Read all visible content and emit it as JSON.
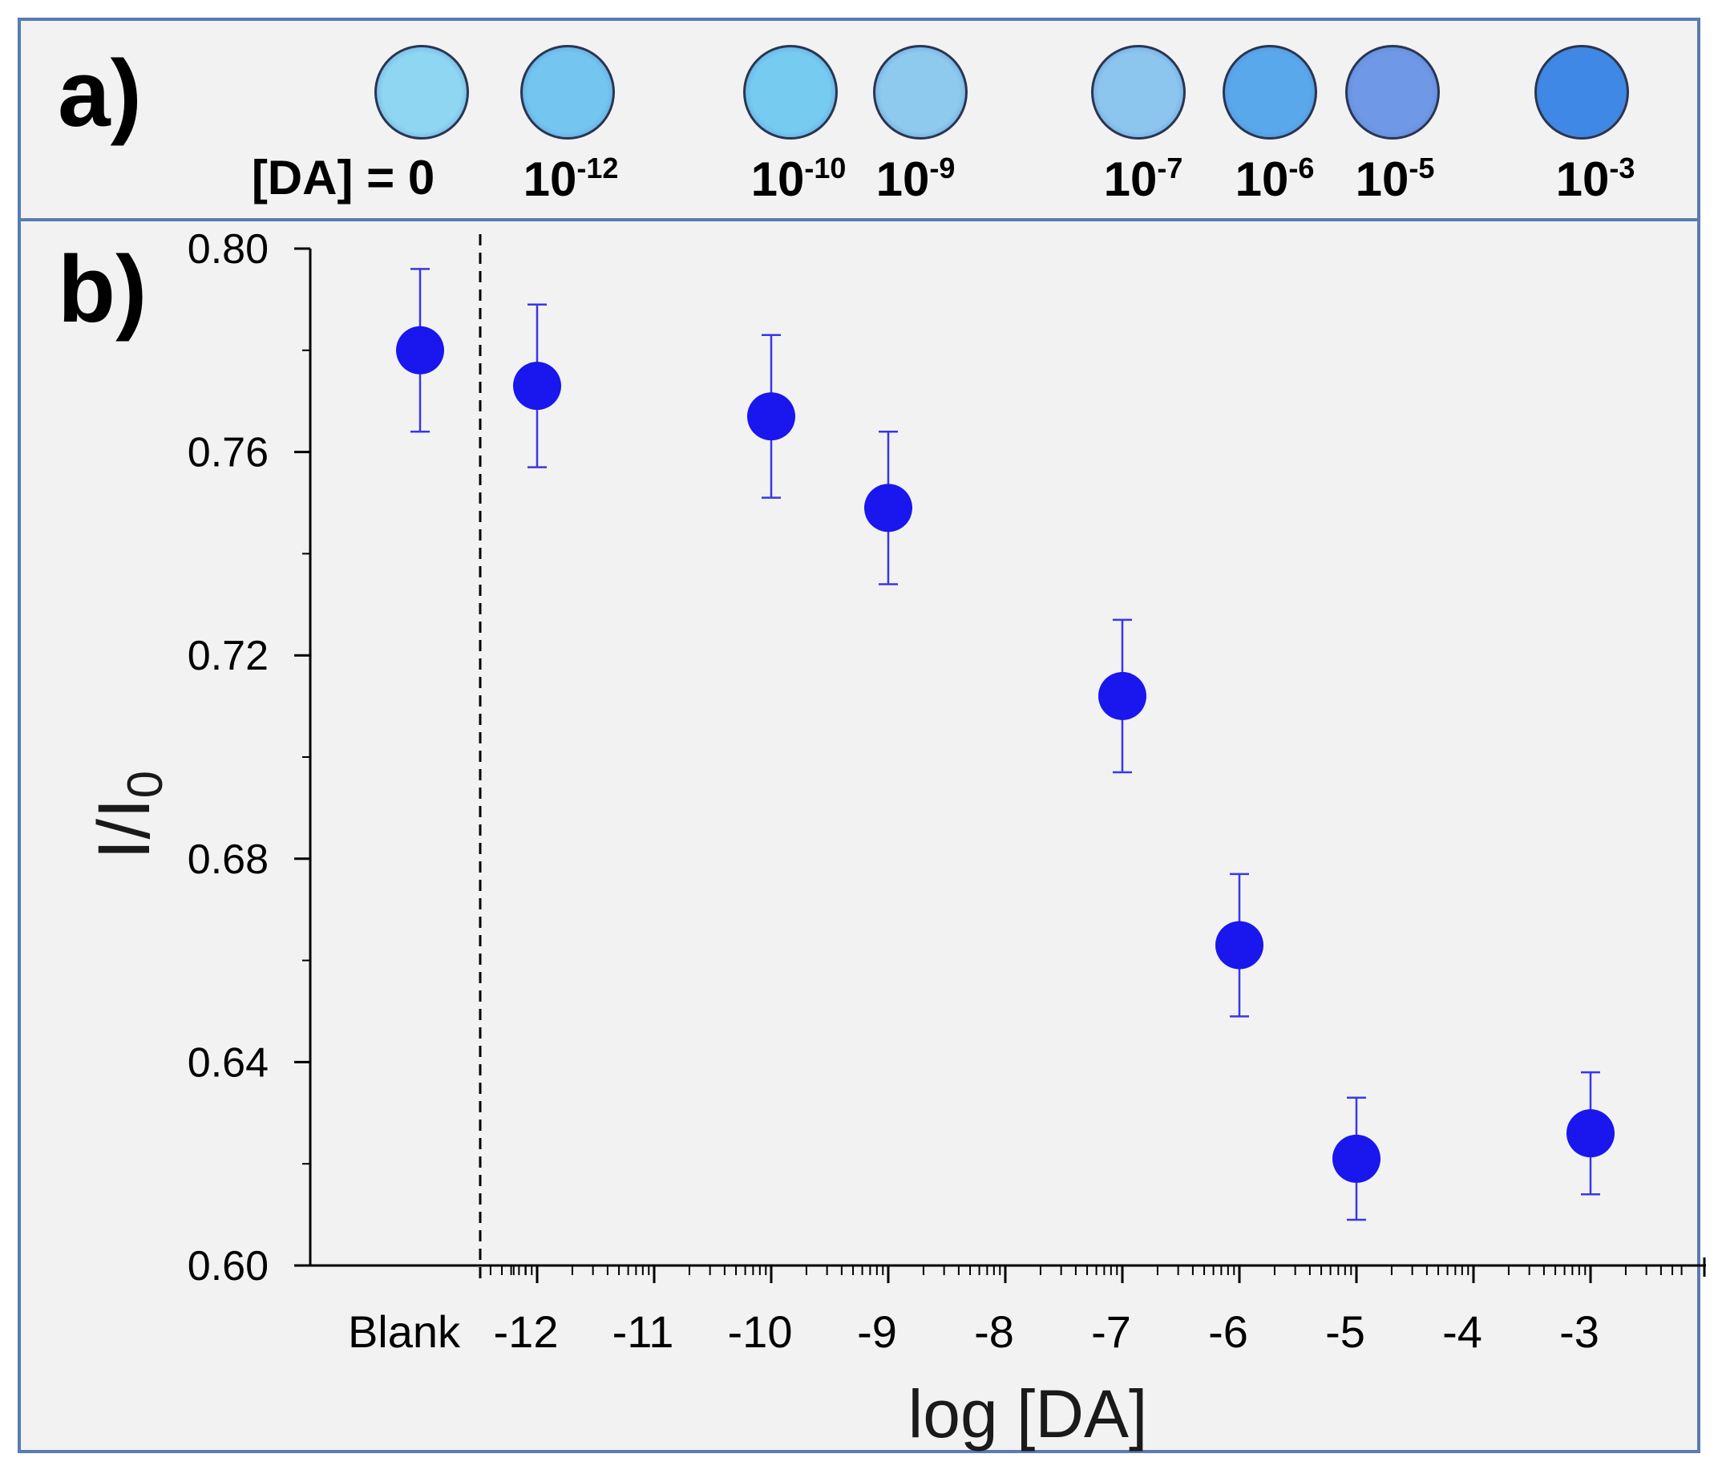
{
  "panel_a": {
    "label": "a)",
    "wells": [
      {
        "label": "[DA] = 0",
        "base": "",
        "exp": "",
        "color": "#8fd6f2"
      },
      {
        "label": "",
        "base": "10",
        "exp": "-12",
        "color": "#74c6f0"
      },
      {
        "label": "",
        "base": "10",
        "exp": "-10",
        "color": "#76cbf0"
      },
      {
        "label": "",
        "base": "10",
        "exp": "-9",
        "color": "#8dcaee"
      },
      {
        "label": "",
        "base": "10",
        "exp": "-7",
        "color": "#8cc6ef"
      },
      {
        "label": "",
        "base": "10",
        "exp": "-6",
        "color": "#5aa8ec"
      },
      {
        "label": "",
        "base": "10",
        "exp": "-5",
        "color": "#6f98e6"
      },
      {
        "label": "",
        "base": "10",
        "exp": "-3",
        "color": "#3f88e6"
      }
    ]
  },
  "panel_b": {
    "label": "b)"
  },
  "colors": {
    "marker": "#1a16ee",
    "errorbar": "#3a36e6",
    "axis": "#000000"
  },
  "chart_data": {
    "type": "scatter",
    "xlabel": "log [DA]",
    "ylabel": "I/I",
    "ylabel_sub": "0",
    "ylim": [
      0.6,
      0.8
    ],
    "yticks": [
      0.6,
      0.64,
      0.68,
      0.72,
      0.76,
      0.8
    ],
    "ytick_labels": [
      "0.60",
      "0.64",
      "0.68",
      "0.72",
      "0.76",
      "0.80"
    ],
    "xlim": [
      -13.5,
      -2.3
    ],
    "xticks": [
      -12,
      -11,
      -10,
      -9,
      -8,
      -7,
      -6,
      -5,
      -4,
      -3
    ],
    "xtick_labels": [
      "-12",
      "-11",
      "-10",
      "-9",
      "-8",
      "-7",
      "-6",
      "-5",
      "-4",
      "-3"
    ],
    "blank_label": "Blank",
    "blank_x": -13,
    "break_x": -12.5,
    "points": [
      {
        "x": -13,
        "y": 0.78,
        "err": 0.016
      },
      {
        "x": -12,
        "y": 0.773,
        "err": 0.016
      },
      {
        "x": -10,
        "y": 0.767,
        "err": 0.016
      },
      {
        "x": -9,
        "y": 0.749,
        "err": 0.015
      },
      {
        "x": -7,
        "y": 0.712,
        "err": 0.015
      },
      {
        "x": -6,
        "y": 0.663,
        "err": 0.014
      },
      {
        "x": -5,
        "y": 0.621,
        "err": 0.012
      },
      {
        "x": -3,
        "y": 0.626,
        "err": 0.012
      }
    ]
  }
}
